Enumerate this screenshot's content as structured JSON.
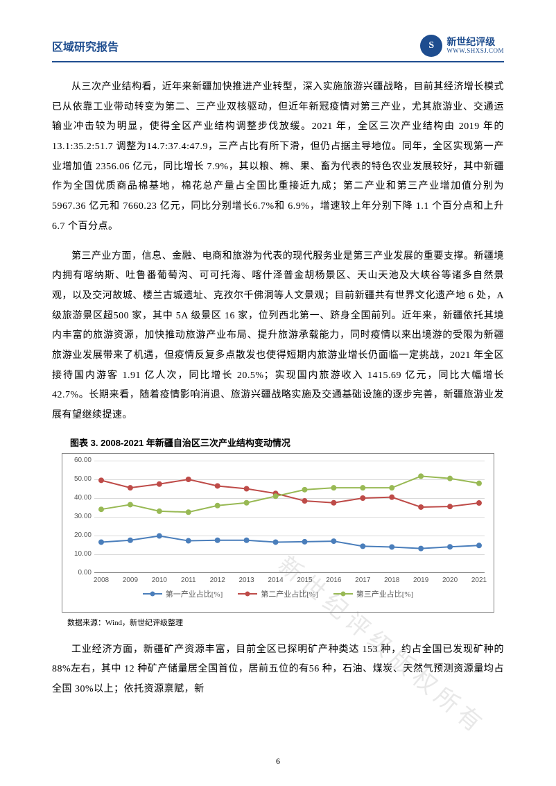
{
  "header": {
    "title": "区域研究报告",
    "logo_text": "新世纪评级",
    "logo_url": "WWW.SHXSJ.COM",
    "logo_badge": "S"
  },
  "paragraphs": {
    "p1": "从三次产业结构看，近年来新疆加快推进产业转型，深入实施旅游兴疆战略，目前其经济增长模式已从依靠工业带动转变为第二、三产业双核驱动，但近年新冠疫情对第三产业，尤其旅游业、交通运输业冲击较为明显，使得全区产业结构调整步伐放缓。2021 年，全区三次产业结构由 2019 年的 13.1:35.2:51.7 调整为14.7:37.4:47.9，三产占比有所下滑，但仍占据主导地位。同年，全区实现第一产业增加值 2356.06 亿元，同比增长 7.9%，其以粮、棉、果、畜为代表的特色农业发展较好，其中新疆作为全国优质商品棉基地，棉花总产量占全国比重接近九成；第二产业和第三产业增加值分别为 5967.36 亿元和 7660.23 亿元，同比分别增长6.7%和 6.9%，增速较上年分别下降 1.1 个百分点和上升 6.7 个百分点。",
    "p2": "第三产业方面，信息、金融、电商和旅游为代表的现代服务业是第三产业发展的重要支撑。新疆境内拥有喀纳斯、吐鲁番葡萄沟、可可托海、喀什泽普金胡杨景区、天山天池及大峡谷等诸多自然景观，以及交河故城、楼兰古城遗址、克孜尔千佛洞等人文景观；目前新疆共有世界文化遗产地 6 处，A 级旅游景区超500 家，其中 5A 级景区 16 家，位列西北第一、跻身全国前列。近年来，新疆依托其境内丰富的旅游资源，加快推动旅游产业布局、提升旅游承载能力，同时疫情以来出境游的受限为新疆旅游业发展带来了机遇，但疫情反复多点散发也使得短期内旅游业增长仍面临一定挑战，2021 年全区接待国内游客 1.91 亿人次，同比增长 20.5%；实现国内旅游收入 1415.69 亿元，同比大幅增长 42.7%。长期来看，随着疫情影响消退、旅游兴疆战略实施及交通基础设施的逐步完善，新疆旅游业发展有望继续提速。",
    "p3": "工业经济方面，新疆矿产资源丰富，目前全区已探明矿产种类达 153 种，约占全国已发现矿种的 88%左右，其中 12 种矿产储量居全国首位，居前五位的有56 种，石油、煤炭、天然气预测资源量均占全国 30%以上；依托资源禀赋，新"
  },
  "figure": {
    "title": "图表 3. 2008-2021 年新疆自治区三次产业结构变动情况",
    "source": "数据来源：Wind，新世纪评级整理"
  },
  "chart": {
    "type": "line",
    "ylim": [
      0,
      60
    ],
    "ytick_step": 10,
    "yticks": [
      "0.00",
      "10.00",
      "20.00",
      "30.00",
      "40.00",
      "50.00",
      "60.00"
    ],
    "years": [
      2008,
      2009,
      2010,
      2011,
      2012,
      2013,
      2014,
      2015,
      2016,
      2017,
      2018,
      2019,
      2020,
      2021
    ],
    "series": [
      {
        "name": "第一产业占比[%]",
        "color": "#4a7ebb",
        "values": [
          16.5,
          17.5,
          19.8,
          17.2,
          17.5,
          17.5,
          16.5,
          16.7,
          17.0,
          14.3,
          13.9,
          13.1,
          14.0,
          14.7
        ]
      },
      {
        "name": "第二产业占比[%]",
        "color": "#be4b48",
        "values": [
          49.5,
          45.5,
          47.5,
          50.0,
          46.5,
          45.0,
          42.5,
          38.5,
          37.5,
          40.0,
          40.5,
          35.2,
          35.5,
          37.4
        ]
      },
      {
        "name": "第三产业占比[%]",
        "color": "#98b954",
        "values": [
          34.0,
          36.5,
          33.0,
          32.5,
          36.0,
          37.5,
          41.0,
          44.5,
          45.5,
          45.5,
          45.5,
          51.7,
          50.5,
          47.9
        ]
      }
    ],
    "background_color": "#ffffff",
    "grid_color": "#d9d9d9",
    "axis_color": "#808080",
    "label_color": "#595959",
    "label_fontsize": 10,
    "line_width": 2,
    "marker_size": 4
  },
  "watermark": "新世纪评级版权所有",
  "page_number": "6"
}
